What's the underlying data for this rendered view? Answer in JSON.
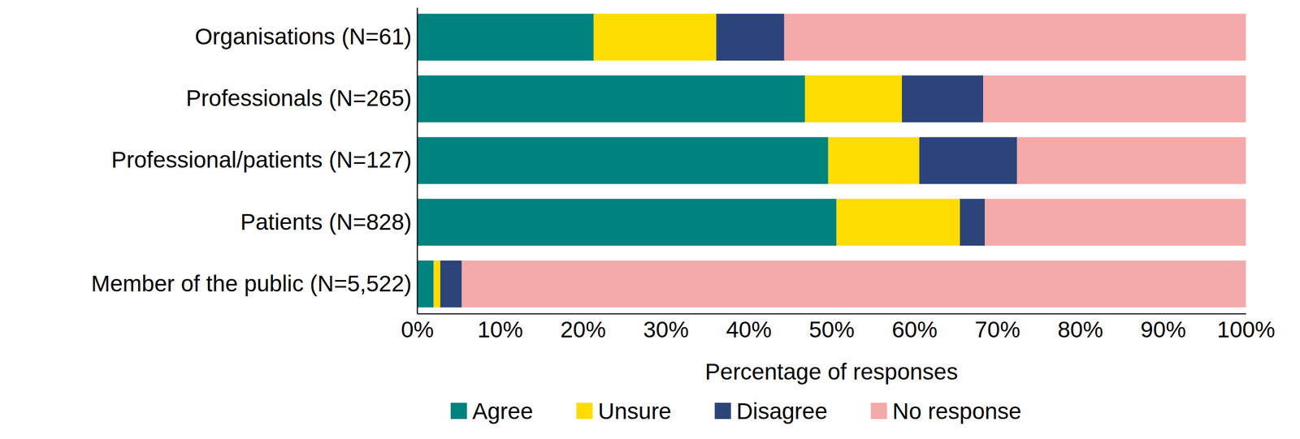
{
  "chart_data": {
    "type": "bar",
    "orientation": "horizontal",
    "stacked": true,
    "categories": [
      "Organisations (N=61)",
      "Professionals (N=265)",
      "Professional/patients (N=127)",
      "Patients (N=828)",
      "Member of the public (N=5,522)"
    ],
    "series": [
      {
        "name": "Agree",
        "color": "#00827f",
        "values": [
          21.3,
          46.8,
          49.6,
          50.6,
          2.0
        ]
      },
      {
        "name": "Unsure",
        "color": "#ffdc00",
        "values": [
          14.8,
          11.7,
          11.0,
          14.9,
          0.8
        ]
      },
      {
        "name": "Disagree",
        "color": "#2c4479",
        "values": [
          8.2,
          9.8,
          11.8,
          3.0,
          2.6
        ]
      },
      {
        "name": "No response",
        "color": "#f4aaa8",
        "values": [
          55.7,
          31.7,
          27.6,
          31.5,
          94.6
        ]
      }
    ],
    "xlim": [
      0,
      100
    ],
    "xticks": [
      {
        "value": 0,
        "label": "0%"
      },
      {
        "value": 10,
        "label": "10%"
      },
      {
        "value": 20,
        "label": "20%"
      },
      {
        "value": 30,
        "label": "30%"
      },
      {
        "value": 40,
        "label": "40%"
      },
      {
        "value": 50,
        "label": "50%"
      },
      {
        "value": 60,
        "label": "60%"
      },
      {
        "value": 70,
        "label": "70%"
      },
      {
        "value": 80,
        "label": "80%"
      },
      {
        "value": 90,
        "label": "90%"
      },
      {
        "value": 100,
        "label": "100%"
      }
    ],
    "x_label": "Percentage of responses",
    "grid": false,
    "legend": "bottom"
  }
}
